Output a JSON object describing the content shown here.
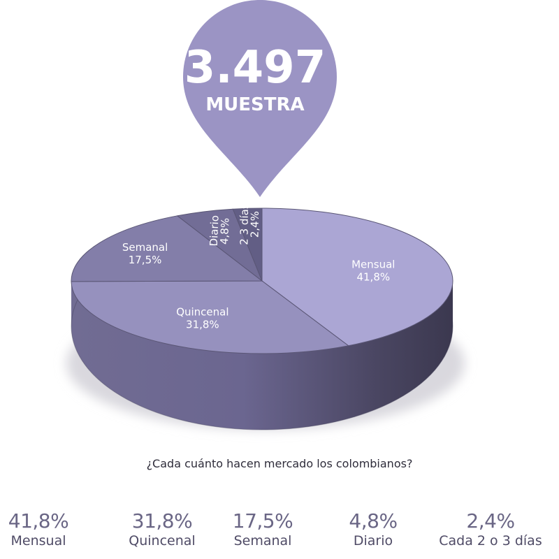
{
  "sample": {
    "value": "3.497",
    "label": "MUESTRA"
  },
  "question": "¿Cada cuánto hacen mercado los colombianos?",
  "chart_data": {
    "type": "pie",
    "slices": [
      {
        "name": "Mensual",
        "value": 41.8,
        "label": "41,8%",
        "color": "#aba6d4"
      },
      {
        "name": "Quincenal",
        "value": 31.8,
        "label": "31,8%",
        "color": "#9691be"
      },
      {
        "name": "Semanal",
        "value": 17.5,
        "label": "17,5%",
        "color": "#837ea9"
      },
      {
        "name": "Diario",
        "value": 4.8,
        "label": "4,8%",
        "color": "#726d96"
      },
      {
        "name": "2 3 días",
        "value": 2.4,
        "label": "2,4%",
        "color": "#625e85"
      }
    ]
  },
  "summary": [
    {
      "pct": "41,8%",
      "cat": "Mensual"
    },
    {
      "pct": "31,8%",
      "cat": "Quincenal"
    },
    {
      "pct": "17,5%",
      "cat": "Semanal"
    },
    {
      "pct": "4,8%",
      "cat": "Diario"
    },
    {
      "pct": "2,4%",
      "cat": "Cada 2 o 3 días"
    }
  ],
  "colors": {
    "pin": "#9b94c4",
    "rim_light": "#7a7599",
    "rim_dark": "#3f3c54"
  }
}
